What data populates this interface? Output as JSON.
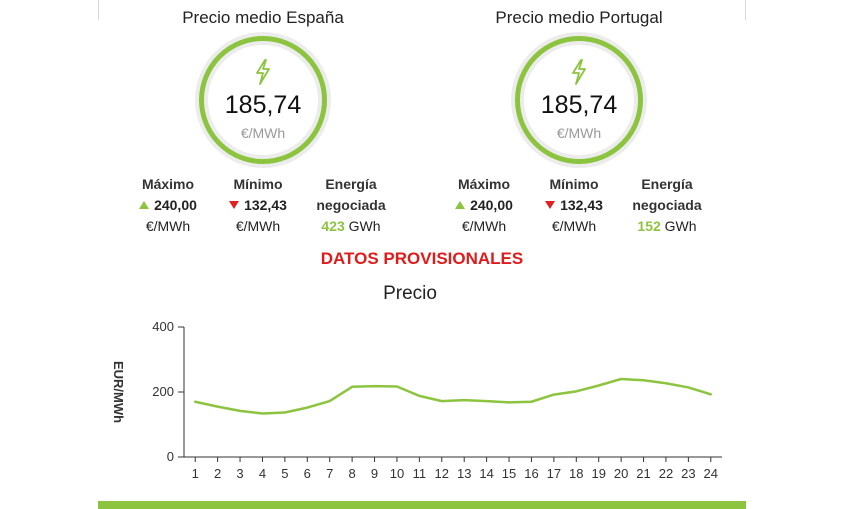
{
  "spain": {
    "title": "Precio medio España",
    "price": "185,74",
    "unit": "€/MWh",
    "max_label": "Máximo",
    "max_value": "240,00",
    "max_unit": "€/MWh",
    "min_label": "Mínimo",
    "min_value": "132,43",
    "min_unit": "€/MWh",
    "energy_label_1": "Energía",
    "energy_label_2": "negociada",
    "energy_value": "423",
    "energy_unit": "GWh"
  },
  "portugal": {
    "title": "Precio medio Portugal",
    "price": "185,74",
    "unit": "€/MWh",
    "max_label": "Máximo",
    "max_value": "240,00",
    "max_unit": "€/MWh",
    "min_label": "Mínimo",
    "min_value": "132,43",
    "min_unit": "€/MWh",
    "energy_label_1": "Energía",
    "energy_label_2": "negociada",
    "energy_value": "152",
    "energy_unit": "GWh"
  },
  "icons": {
    "price": "lightning-bolt-icon",
    "max": "triangle-up-icon",
    "min": "triangle-down-icon"
  },
  "colors": {
    "accent": "#8cc43f",
    "ring_track": "#ececec",
    "alert": "#e01b1b"
  },
  "provisional_text": "DATOS PROVISIONALES",
  "chart_data": {
    "type": "line",
    "title": "Precio",
    "xlabel": "",
    "ylabel": "EUR/MWh",
    "x": [
      1,
      2,
      3,
      4,
      5,
      6,
      7,
      8,
      9,
      10,
      11,
      12,
      13,
      14,
      15,
      16,
      17,
      18,
      19,
      20,
      21,
      22,
      23,
      24
    ],
    "series": [
      {
        "values": [
          170,
          155,
          142,
          134,
          137,
          152,
          172,
          216,
          218,
          217,
          188,
          172,
          175,
          172,
          168,
          170,
          192,
          202,
          220,
          240,
          236,
          227,
          214,
          193
        ]
      }
    ],
    "ylim": [
      0,
      400
    ],
    "yticks": [
      0,
      200,
      400
    ],
    "grid": false,
    "line_color": "#8cc43f"
  }
}
